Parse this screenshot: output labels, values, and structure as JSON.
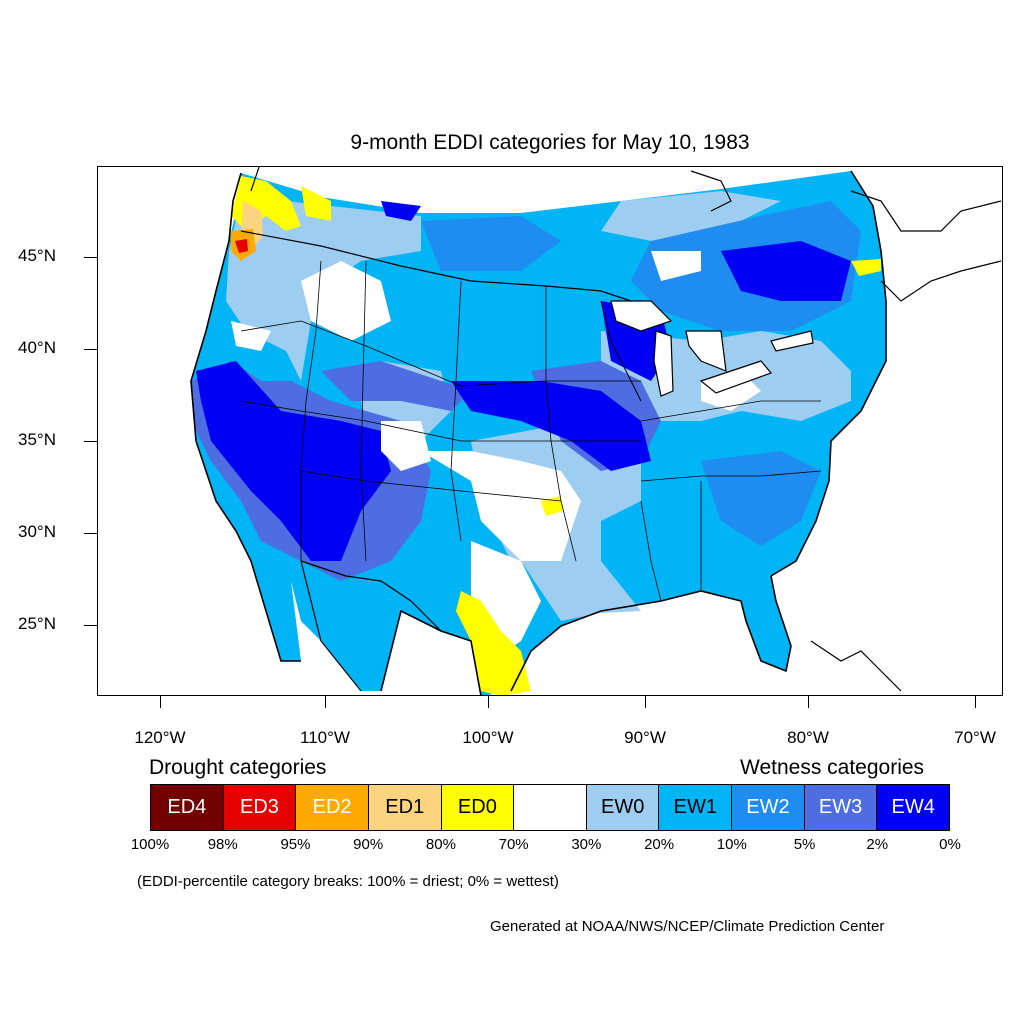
{
  "title": "9-month EDDI categories for May 10, 1983",
  "map": {
    "lat_ticks": [
      "45°N",
      "40°N",
      "35°N",
      "30°N",
      "25°N"
    ],
    "lon_ticks": [
      "120°W",
      "110°W",
      "100°W",
      "90°W",
      "80°W",
      "70°W"
    ],
    "colors": {
      "water": "#ffffff",
      "coast": "#000000",
      "ED4": "#730000",
      "ED3": "#e60000",
      "ED2": "#ffaa00",
      "ED1": "#fcd37f",
      "ED0": "#ffff00",
      "neutral": "#ffffff",
      "EW0": "#9dcdf0",
      "EW1": "#00b4f5",
      "EW2": "#1e8cf0",
      "EW3": "#4e6de3",
      "EW4": "#0000f5"
    }
  },
  "legend": {
    "drought_heading": "Drought categories",
    "wetness_heading": "Wetness categories",
    "categories": [
      {
        "label": "ED4",
        "color": "#730000",
        "text_color": "#ffffff"
      },
      {
        "label": "ED3",
        "color": "#e60000",
        "text_color": "#ffffff"
      },
      {
        "label": "ED2",
        "color": "#ffaa00",
        "text_color": "#ffffff"
      },
      {
        "label": "ED1",
        "color": "#fcd37f",
        "text_color": "#000000"
      },
      {
        "label": "ED0",
        "color": "#ffff00",
        "text_color": "#000000"
      },
      {
        "label": "",
        "color": "#ffffff",
        "text_color": "#000000"
      },
      {
        "label": "EW0",
        "color": "#9dcdf0",
        "text_color": "#000000"
      },
      {
        "label": "EW1",
        "color": "#00b4f5",
        "text_color": "#000000"
      },
      {
        "label": "EW2",
        "color": "#1e8cf0",
        "text_color": "#ffffff"
      },
      {
        "label": "EW3",
        "color": "#4e6de3",
        "text_color": "#ffffff"
      },
      {
        "label": "EW4",
        "color": "#0000f5",
        "text_color": "#ffffff"
      }
    ],
    "breaks": [
      "100%",
      "98%",
      "95%",
      "90%",
      "80%",
      "70%",
      "30%",
      "20%",
      "10%",
      "5%",
      "2%",
      "0%"
    ]
  },
  "note": "(EDDI-percentile category breaks: 100% = driest; 0% = wettest)",
  "credit": "Generated at NOAA/NWS/NCEP/Climate Prediction Center"
}
